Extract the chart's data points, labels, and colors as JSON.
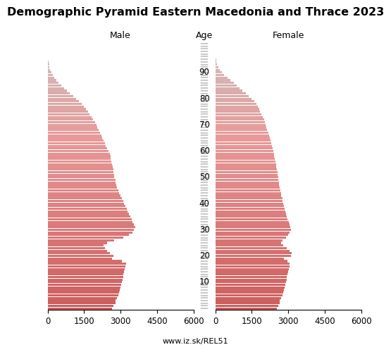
{
  "title": "Demographic Pyramid Eastern Macedonia and Thrace 2023",
  "label_male": "Male",
  "label_female": "Female",
  "label_age": "Age",
  "source": "www.iz.sk/REL51",
  "xlim": 6000,
  "ytick_major": [
    10,
    20,
    30,
    40,
    50,
    60,
    70,
    80,
    90
  ],
  "ages": [
    0,
    1,
    2,
    3,
    4,
    5,
    6,
    7,
    8,
    9,
    10,
    11,
    12,
    13,
    14,
    15,
    16,
    17,
    18,
    19,
    20,
    21,
    22,
    23,
    24,
    25,
    26,
    27,
    28,
    29,
    30,
    31,
    32,
    33,
    34,
    35,
    36,
    37,
    38,
    39,
    40,
    41,
    42,
    43,
    44,
    45,
    46,
    47,
    48,
    49,
    50,
    51,
    52,
    53,
    54,
    55,
    56,
    57,
    58,
    59,
    60,
    61,
    62,
    63,
    64,
    65,
    66,
    67,
    68,
    69,
    70,
    71,
    72,
    73,
    74,
    75,
    76,
    77,
    78,
    79,
    80,
    81,
    82,
    83,
    84,
    85,
    86,
    87,
    88,
    89,
    90,
    91,
    92,
    93,
    94,
    95,
    96,
    97,
    98,
    99,
    100
  ],
  "male_2023": [
    2650,
    2720,
    2780,
    2790,
    2850,
    2900,
    2950,
    2980,
    3000,
    3020,
    3050,
    3080,
    3100,
    3120,
    3150,
    3180,
    3200,
    3220,
    3050,
    2650,
    2700,
    2550,
    2450,
    2350,
    2300,
    2450,
    2750,
    3100,
    3350,
    3500,
    3550,
    3600,
    3550,
    3500,
    3450,
    3400,
    3350,
    3300,
    3250,
    3200,
    3150,
    3100,
    3050,
    3000,
    2950,
    2900,
    2850,
    2820,
    2800,
    2780,
    2750,
    2730,
    2720,
    2700,
    2680,
    2650,
    2620,
    2600,
    2580,
    2550,
    2500,
    2450,
    2400,
    2350,
    2300,
    2250,
    2200,
    2150,
    2100,
    2050,
    2000,
    1950,
    1880,
    1800,
    1720,
    1650,
    1580,
    1500,
    1400,
    1300,
    1180,
    1050,
    900,
    780,
    680,
    560,
    450,
    360,
    280,
    210,
    150,
    105,
    75,
    55,
    38,
    25,
    15,
    9,
    5,
    3,
    1
  ],
  "female_2023": [
    2520,
    2580,
    2640,
    2660,
    2710,
    2760,
    2800,
    2830,
    2850,
    2870,
    2900,
    2930,
    2950,
    2980,
    3000,
    3020,
    3040,
    3060,
    2980,
    2820,
    3100,
    3150,
    3050,
    2950,
    2800,
    2700,
    2750,
    2900,
    3000,
    3050,
    3100,
    3080,
    3050,
    3020,
    2980,
    2950,
    2900,
    2870,
    2850,
    2830,
    2800,
    2770,
    2750,
    2720,
    2700,
    2680,
    2650,
    2630,
    2620,
    2600,
    2580,
    2560,
    2550,
    2530,
    2510,
    2490,
    2470,
    2450,
    2430,
    2410,
    2380,
    2350,
    2320,
    2290,
    2260,
    2230,
    2200,
    2170,
    2140,
    2110,
    2080,
    2050,
    2000,
    1950,
    1900,
    1850,
    1800,
    1750,
    1680,
    1600,
    1500,
    1380,
    1250,
    1120,
    1000,
    880,
    750,
    620,
    490,
    370,
    260,
    175,
    115,
    80,
    52,
    32,
    18,
    10,
    5,
    3,
    1
  ],
  "male_2022": [
    2600,
    2670,
    2730,
    2740,
    2800,
    2850,
    2900,
    2930,
    2950,
    2970,
    3000,
    3030,
    3050,
    3070,
    3100,
    3130,
    3150,
    3170,
    3000,
    2600,
    2650,
    2500,
    2400,
    2300,
    2250,
    2400,
    2700,
    3050,
    3300,
    3450,
    3500,
    3550,
    3500,
    3450,
    3400,
    3350,
    3300,
    3250,
    3200,
    3150,
    3100,
    3050,
    3000,
    2950,
    2900,
    2850,
    2800,
    2770,
    2750,
    2730,
    2700,
    2680,
    2670,
    2650,
    2630,
    2600,
    2570,
    2550,
    2530,
    2500,
    2450,
    2400,
    2350,
    2300,
    2250,
    2200,
    2150,
    2100,
    2050,
    2000,
    1950,
    1900,
    1830,
    1750,
    1670,
    1600,
    1530,
    1450,
    1350,
    1250,
    1130,
    1000,
    860,
    740,
    640,
    520,
    420,
    330,
    255,
    190,
    135,
    95,
    67,
    49,
    34,
    22,
    13,
    8,
    4,
    2,
    1
  ],
  "female_2022": [
    2470,
    2530,
    2590,
    2610,
    2660,
    2710,
    2750,
    2780,
    2800,
    2820,
    2850,
    2880,
    2900,
    2930,
    2950,
    2970,
    2990,
    3010,
    2930,
    2770,
    3050,
    3100,
    3000,
    2900,
    2750,
    2650,
    2700,
    2850,
    2950,
    3000,
    3050,
    3030,
    3000,
    2970,
    2930,
    2900,
    2850,
    2820,
    2800,
    2780,
    2750,
    2720,
    2700,
    2670,
    2650,
    2630,
    2600,
    2580,
    2570,
    2550,
    2530,
    2510,
    2500,
    2480,
    2460,
    2440,
    2420,
    2400,
    2380,
    2360,
    2330,
    2300,
    2270,
    2240,
    2210,
    2180,
    2150,
    2120,
    2090,
    2060,
    2030,
    2000,
    1950,
    1900,
    1850,
    1800,
    1750,
    1700,
    1630,
    1550,
    1450,
    1330,
    1200,
    1070,
    950,
    830,
    700,
    580,
    455,
    340,
    235,
    158,
    103,
    71,
    46,
    28,
    16,
    9,
    4,
    2,
    1
  ],
  "bar_height": 0.85,
  "title_fontsize": 11.5,
  "label_fontsize": 9,
  "tick_fontsize": 8.5,
  "source_fontsize": 8
}
